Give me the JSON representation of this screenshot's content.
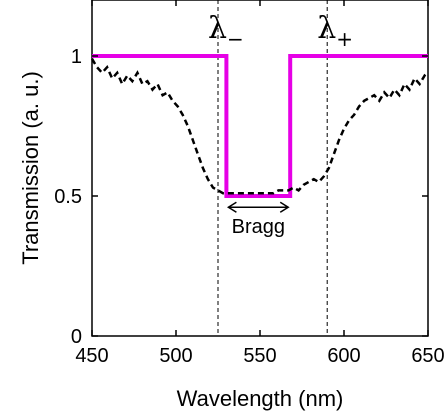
{
  "chart_data": {
    "type": "line",
    "xlabel": "Wavelength (nm)",
    "ylabel": "Transmission (a. u.)",
    "xlim": [
      450,
      650
    ],
    "ylim": [
      0,
      1.2
    ],
    "x_ticks": [
      450,
      500,
      550,
      600,
      650
    ],
    "y_ticks": [
      0,
      0.5,
      1
    ],
    "x_tick_labels": [
      "450",
      "500",
      "550",
      "600",
      "650"
    ],
    "y_tick_labels": [
      "0",
      "0.5",
      "1"
    ],
    "grid": false,
    "legend": "none",
    "series": [
      {
        "style": "solid",
        "color": "#e600e6",
        "x": [
          450,
          530,
          530,
          568,
          568,
          650
        ],
        "y": [
          1.0,
          1.0,
          0.5,
          0.5,
          1.0,
          1.0
        ]
      },
      {
        "style": "dashed",
        "color": "#000000",
        "x": [
          450,
          453,
          456,
          459,
          462,
          465,
          468,
          471,
          474,
          477,
          480,
          483,
          486,
          489,
          492,
          495,
          498,
          501,
          504,
          507,
          510,
          513,
          516,
          519,
          522,
          525,
          528,
          531,
          534,
          537,
          540,
          543,
          546,
          549,
          552,
          555,
          558,
          561,
          564,
          567,
          570,
          573,
          576,
          579,
          582,
          585,
          588,
          591,
          594,
          597,
          600,
          603,
          606,
          609,
          612,
          615,
          618,
          621,
          624,
          627,
          630,
          633,
          636,
          639,
          642,
          645,
          648,
          650
        ],
        "y": [
          0.99,
          0.96,
          0.94,
          0.96,
          0.92,
          0.94,
          0.9,
          0.93,
          0.91,
          0.94,
          0.9,
          0.91,
          0.88,
          0.9,
          0.86,
          0.87,
          0.84,
          0.82,
          0.79,
          0.75,
          0.7,
          0.65,
          0.6,
          0.56,
          0.53,
          0.52,
          0.51,
          0.51,
          0.51,
          0.51,
          0.51,
          0.51,
          0.51,
          0.51,
          0.51,
          0.51,
          0.51,
          0.52,
          0.52,
          0.52,
          0.53,
          0.52,
          0.54,
          0.55,
          0.56,
          0.55,
          0.57,
          0.6,
          0.65,
          0.7,
          0.74,
          0.77,
          0.79,
          0.82,
          0.84,
          0.85,
          0.86,
          0.84,
          0.87,
          0.85,
          0.88,
          0.86,
          0.9,
          0.88,
          0.92,
          0.9,
          0.93,
          0.92
        ]
      }
    ],
    "annotations": {
      "lambda_minus": {
        "symbol": "λ",
        "subscript": "−",
        "x": 525
      },
      "lambda_plus": {
        "symbol": "λ",
        "subscript": "+",
        "x": 590
      },
      "bragg": {
        "label": "Bragg",
        "x_start": 530,
        "x_end": 568,
        "y": 0.46
      }
    }
  }
}
